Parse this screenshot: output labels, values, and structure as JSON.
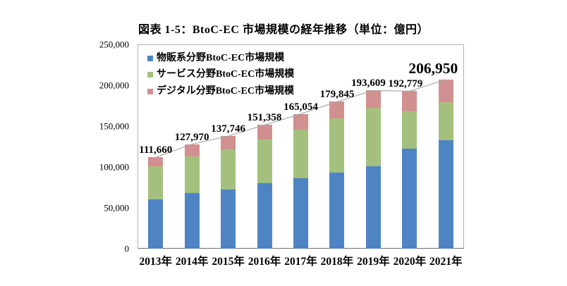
{
  "figure": {
    "title": "図表 1-5：BtoC-EC 市場規模の経年推移（単位：億円）"
  },
  "chart_data": {
    "type": "bar",
    "stacked": true,
    "title": "図表 1-5：BtoC-EC 市場規模の経年推移（単位：億円）",
    "unit": "億円",
    "categories": [
      "2013年",
      "2014年",
      "2015年",
      "2016年",
      "2017年",
      "2018年",
      "2019年",
      "2020年",
      "2021年"
    ],
    "series": [
      {
        "name": "物販系分野BtoC-EC市場規模",
        "color": "#4E84C4",
        "values": [
          59931,
          68043,
          72398,
          80043,
          86008,
          92992,
          100515,
          122333,
          132865
        ]
      },
      {
        "name": "サービス分野BtoC-EC市場規模",
        "color": "#A3C17C",
        "values": [
          41210,
          44816,
          49014,
          53532,
          59568,
          66471,
          71672,
          45832,
          46424
        ]
      },
      {
        "name": "デジタル分野BtoC-EC市場規模",
        "color": "#D0908F",
        "values": [
          10519,
          15111,
          16334,
          17783,
          19478,
          20382,
          21422,
          24614,
          27661
        ]
      }
    ],
    "totals": [
      111660,
      127970,
      137746,
      151358,
      165054,
      179845,
      193609,
      192779,
      206950
    ],
    "total_labels": [
      "111,660",
      "127,970",
      "137,746",
      "151,358",
      "165,054",
      "179,845",
      "193,609",
      "192,779",
      "206,950"
    ],
    "emphasized_total_index": 8,
    "y_axis": {
      "ylim": [
        0,
        250000
      ],
      "ticks": [
        0,
        50000,
        100000,
        150000,
        200000,
        250000
      ],
      "tick_labels": [
        "0",
        "50,000",
        "100,000",
        "150,000",
        "200,000",
        "250,000"
      ]
    },
    "grid": false,
    "trend_line": true,
    "legend_position": "top-left-inside"
  },
  "colors": {
    "plot_border": "#b0b0b0",
    "axis_line": "#6e6e6e",
    "trend_line": "#ababab",
    "text": "#000000"
  }
}
